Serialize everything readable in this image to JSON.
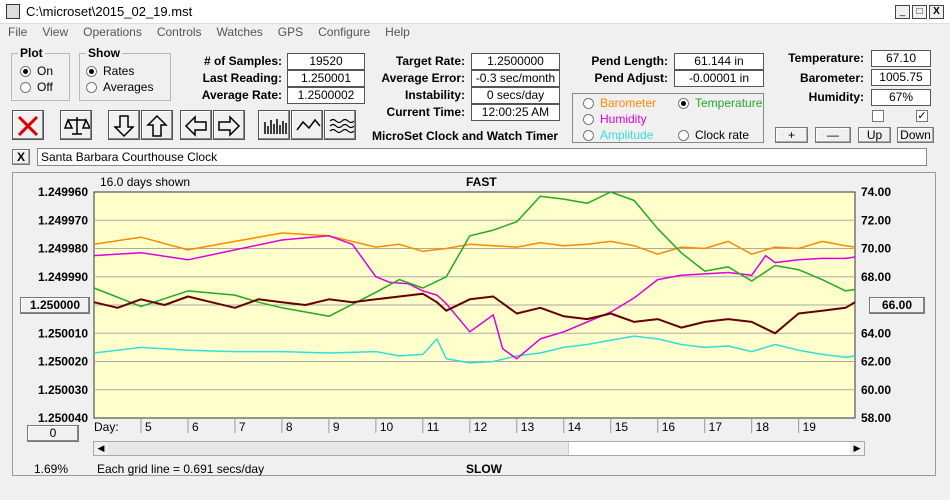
{
  "window": {
    "title": "C:\\microset\\2015_02_19.mst",
    "min_label": "_",
    "max_label": "□",
    "close_label": "X"
  },
  "menu": [
    "File",
    "View",
    "Operations",
    "Controls",
    "Watches",
    "GPS",
    "Configure",
    "Help"
  ],
  "plot_group": {
    "title": "Plot",
    "on": "On",
    "off": "Off",
    "selected": "On"
  },
  "show_group": {
    "title": "Show",
    "rates": "Rates",
    "averages": "Averages",
    "selected": "Rates"
  },
  "stats": {
    "samples_label": "# of Samples:",
    "samples": "19520",
    "last_label": "Last Reading:",
    "last": "1.250001",
    "avgrate_label": "Average Rate:",
    "avgrate": "1.2500002",
    "target_label": "Target Rate:",
    "target": "1.2500000",
    "avgerr_label": "Average Error:",
    "avgerr": "-0.3 sec/month",
    "instab_label": "Instability:",
    "instab": "0 secs/day",
    "time_label": "Current Time:",
    "time": "12:00:25 AM",
    "pendlen_label": "Pend Length:",
    "pendlen": "61.144 in",
    "pendadj_label": "Pend Adjust:",
    "pendadj": "-0.00001 in",
    "temp_label": "Temperature:",
    "temp": "67.10",
    "baro_label": "Barometer:",
    "baro": "1005.75",
    "hum_label": "Humidity:",
    "hum": "67%"
  },
  "app_name": "MicroSet Clock and Watch Timer",
  "sensors": {
    "barometer": "Barometer",
    "temperature": "Temperature",
    "humidity": "Humidity",
    "amplitude": "Amplitude",
    "clockrate": "Clock rate",
    "selected": "Temperature"
  },
  "checks": {
    "left": false,
    "right": true,
    "right_mark": "✓"
  },
  "scale_buttons": {
    "plus": "+",
    "minus": "—",
    "up": "Up",
    "down": "Down"
  },
  "close_x": "X",
  "clock_name": "Santa Barbara Courthouse Clock",
  "chart_left_button": "1.250000",
  "chart_right_button": "66.00",
  "chart_zero_button": "0",
  "footer": {
    "percent": "1.69%",
    "gridnote": "Each grid line = 0.691 secs/day"
  },
  "colors": {
    "plot_bg": "#ffffcc",
    "rate": "#660000",
    "temperature": "#22aa22",
    "barometer": "#ff8800",
    "humidity": "#dd00dd",
    "amplitude": "#33dddd",
    "clockrate": "#000000"
  },
  "chart_data": {
    "type": "line",
    "title": "FAST",
    "bottom_title": "SLOW",
    "days_shown": "16.0 days shown",
    "x_label": "Day:",
    "x_ticks": [
      "5",
      "6",
      "7",
      "8",
      "9",
      "10",
      "11",
      "12",
      "13",
      "14",
      "15",
      "16",
      "17",
      "18",
      "19"
    ],
    "y_left_ticks": [
      "1.249960",
      "1.249970",
      "1.249980",
      "1.249990",
      "1.250000",
      "1.250010",
      "1.250020",
      "1.250030",
      "1.250040"
    ],
    "y_left_range": [
      1.24996,
      1.25004
    ],
    "y_right_ticks": [
      "74.00",
      "72.00",
      "70.00",
      "68.00",
      "66.00",
      "64.00",
      "62.00",
      "60.00",
      "58.00"
    ],
    "y_right_range": [
      58,
      74
    ],
    "x_range": [
      4,
      20.2
    ],
    "series": [
      {
        "name": "Rate",
        "color": "#660000",
        "x": [
          4.0,
          4.5,
          5.0,
          5.5,
          6.0,
          6.5,
          7.0,
          7.5,
          8.0,
          8.5,
          9.0,
          9.5,
          10.0,
          10.5,
          11.0,
          11.3,
          11.5,
          12.0,
          12.5,
          13.0,
          13.5,
          14.0,
          14.5,
          15.0,
          15.5,
          16.0,
          16.5,
          17.0,
          17.5,
          18.0,
          18.5,
          19.0,
          19.5,
          20.0,
          20.2
        ],
        "values": [
          1.249999,
          1.250001,
          1.249998,
          1.25,
          1.249997,
          1.249999,
          1.250001,
          1.249998,
          1.249999,
          1.25,
          1.249998,
          1.249999,
          1.249998,
          1.249997,
          1.249996,
          1.249999,
          1.250002,
          1.249998,
          1.249997,
          1.250003,
          1.250001,
          1.250004,
          1.250005,
          1.250003,
          1.250006,
          1.250005,
          1.250008,
          1.250006,
          1.250005,
          1.250006,
          1.25001,
          1.250003,
          1.250002,
          1.250001,
          1.249999
        ]
      },
      {
        "name": "Temperature",
        "color": "#22aa22",
        "x": [
          4.0,
          5.0,
          6.0,
          7.0,
          7.5,
          8.0,
          9.0,
          10.0,
          10.5,
          11.0,
          11.5,
          12.0,
          12.5,
          13.0,
          13.5,
          14.0,
          14.5,
          15.0,
          15.5,
          16.0,
          16.5,
          17.0,
          17.5,
          18.0,
          18.5,
          19.0,
          19.5,
          20.0,
          20.2
        ],
        "values": [
          67.2,
          65.9,
          67.0,
          66.7,
          66.2,
          65.8,
          65.2,
          66.9,
          67.8,
          67.2,
          68.0,
          70.9,
          71.3,
          71.9,
          73.7,
          73.5,
          73.2,
          74.0,
          73.4,
          71.4,
          69.7,
          68.4,
          68.7,
          67.7,
          68.8,
          68.5,
          67.8,
          67.0,
          67.1
        ]
      },
      {
        "name": "Barometer",
        "color": "#ff8800",
        "x": [
          4.0,
          5.0,
          6.0,
          7.0,
          8.0,
          9.0,
          10.0,
          10.5,
          11.0,
          11.5,
          12.0,
          12.5,
          13.0,
          13.5,
          14.0,
          14.5,
          15.0,
          15.5,
          16.0,
          16.5,
          17.0,
          17.5,
          18.0,
          18.5,
          19.0,
          19.5,
          20.0,
          20.2
        ],
        "values": [
          70.3,
          70.8,
          69.9,
          70.5,
          71.1,
          70.9,
          70.1,
          70.3,
          69.8,
          70.0,
          70.3,
          70.2,
          70.1,
          70.4,
          70.2,
          70.3,
          70.5,
          70.2,
          69.6,
          70.1,
          70.0,
          70.5,
          69.6,
          70.1,
          70.0,
          70.5,
          70.2,
          70.1
        ]
      },
      {
        "name": "Humidity",
        "color": "#dd00dd",
        "x": [
          4.0,
          5.0,
          6.0,
          7.0,
          8.0,
          9.0,
          9.5,
          10.0,
          10.3,
          10.7,
          11.0,
          11.3,
          11.5,
          12.0,
          12.5,
          12.7,
          13.0,
          13.5,
          14.0,
          14.5,
          15.0,
          15.5,
          16.0,
          16.5,
          17.0,
          17.5,
          18.0,
          18.3,
          18.5,
          19.0,
          19.5,
          20.0,
          20.2
        ],
        "values": [
          69.5,
          69.7,
          69.2,
          69.9,
          70.6,
          70.9,
          70.3,
          68.0,
          67.6,
          67.5,
          67.0,
          66.7,
          66.1,
          64.1,
          65.3,
          62.9,
          62.2,
          63.6,
          64.1,
          64.8,
          65.5,
          66.5,
          67.8,
          68.1,
          68.2,
          68.3,
          68.1,
          69.5,
          69.0,
          69.2,
          69.3,
          69.3,
          69.4
        ]
      },
      {
        "name": "Amplitude",
        "color": "#33dddd",
        "x": [
          4.0,
          5.0,
          6.0,
          7.0,
          8.0,
          9.0,
          10.0,
          10.5,
          11.0,
          11.3,
          11.5,
          12.0,
          12.5,
          13.0,
          13.5,
          14.0,
          14.5,
          15.0,
          15.5,
          16.0,
          16.5,
          17.0,
          17.5,
          18.0,
          18.5,
          19.0,
          19.5,
          20.0,
          20.2
        ],
        "values": [
          62.6,
          63.0,
          62.8,
          62.7,
          62.7,
          62.6,
          62.7,
          62.4,
          62.5,
          63.6,
          62.2,
          61.9,
          62.0,
          62.4,
          62.6,
          63.0,
          63.2,
          63.5,
          63.8,
          63.6,
          63.2,
          63.0,
          63.1,
          62.7,
          63.2,
          62.8,
          62.5,
          62.3,
          62.4
        ]
      }
    ]
  }
}
